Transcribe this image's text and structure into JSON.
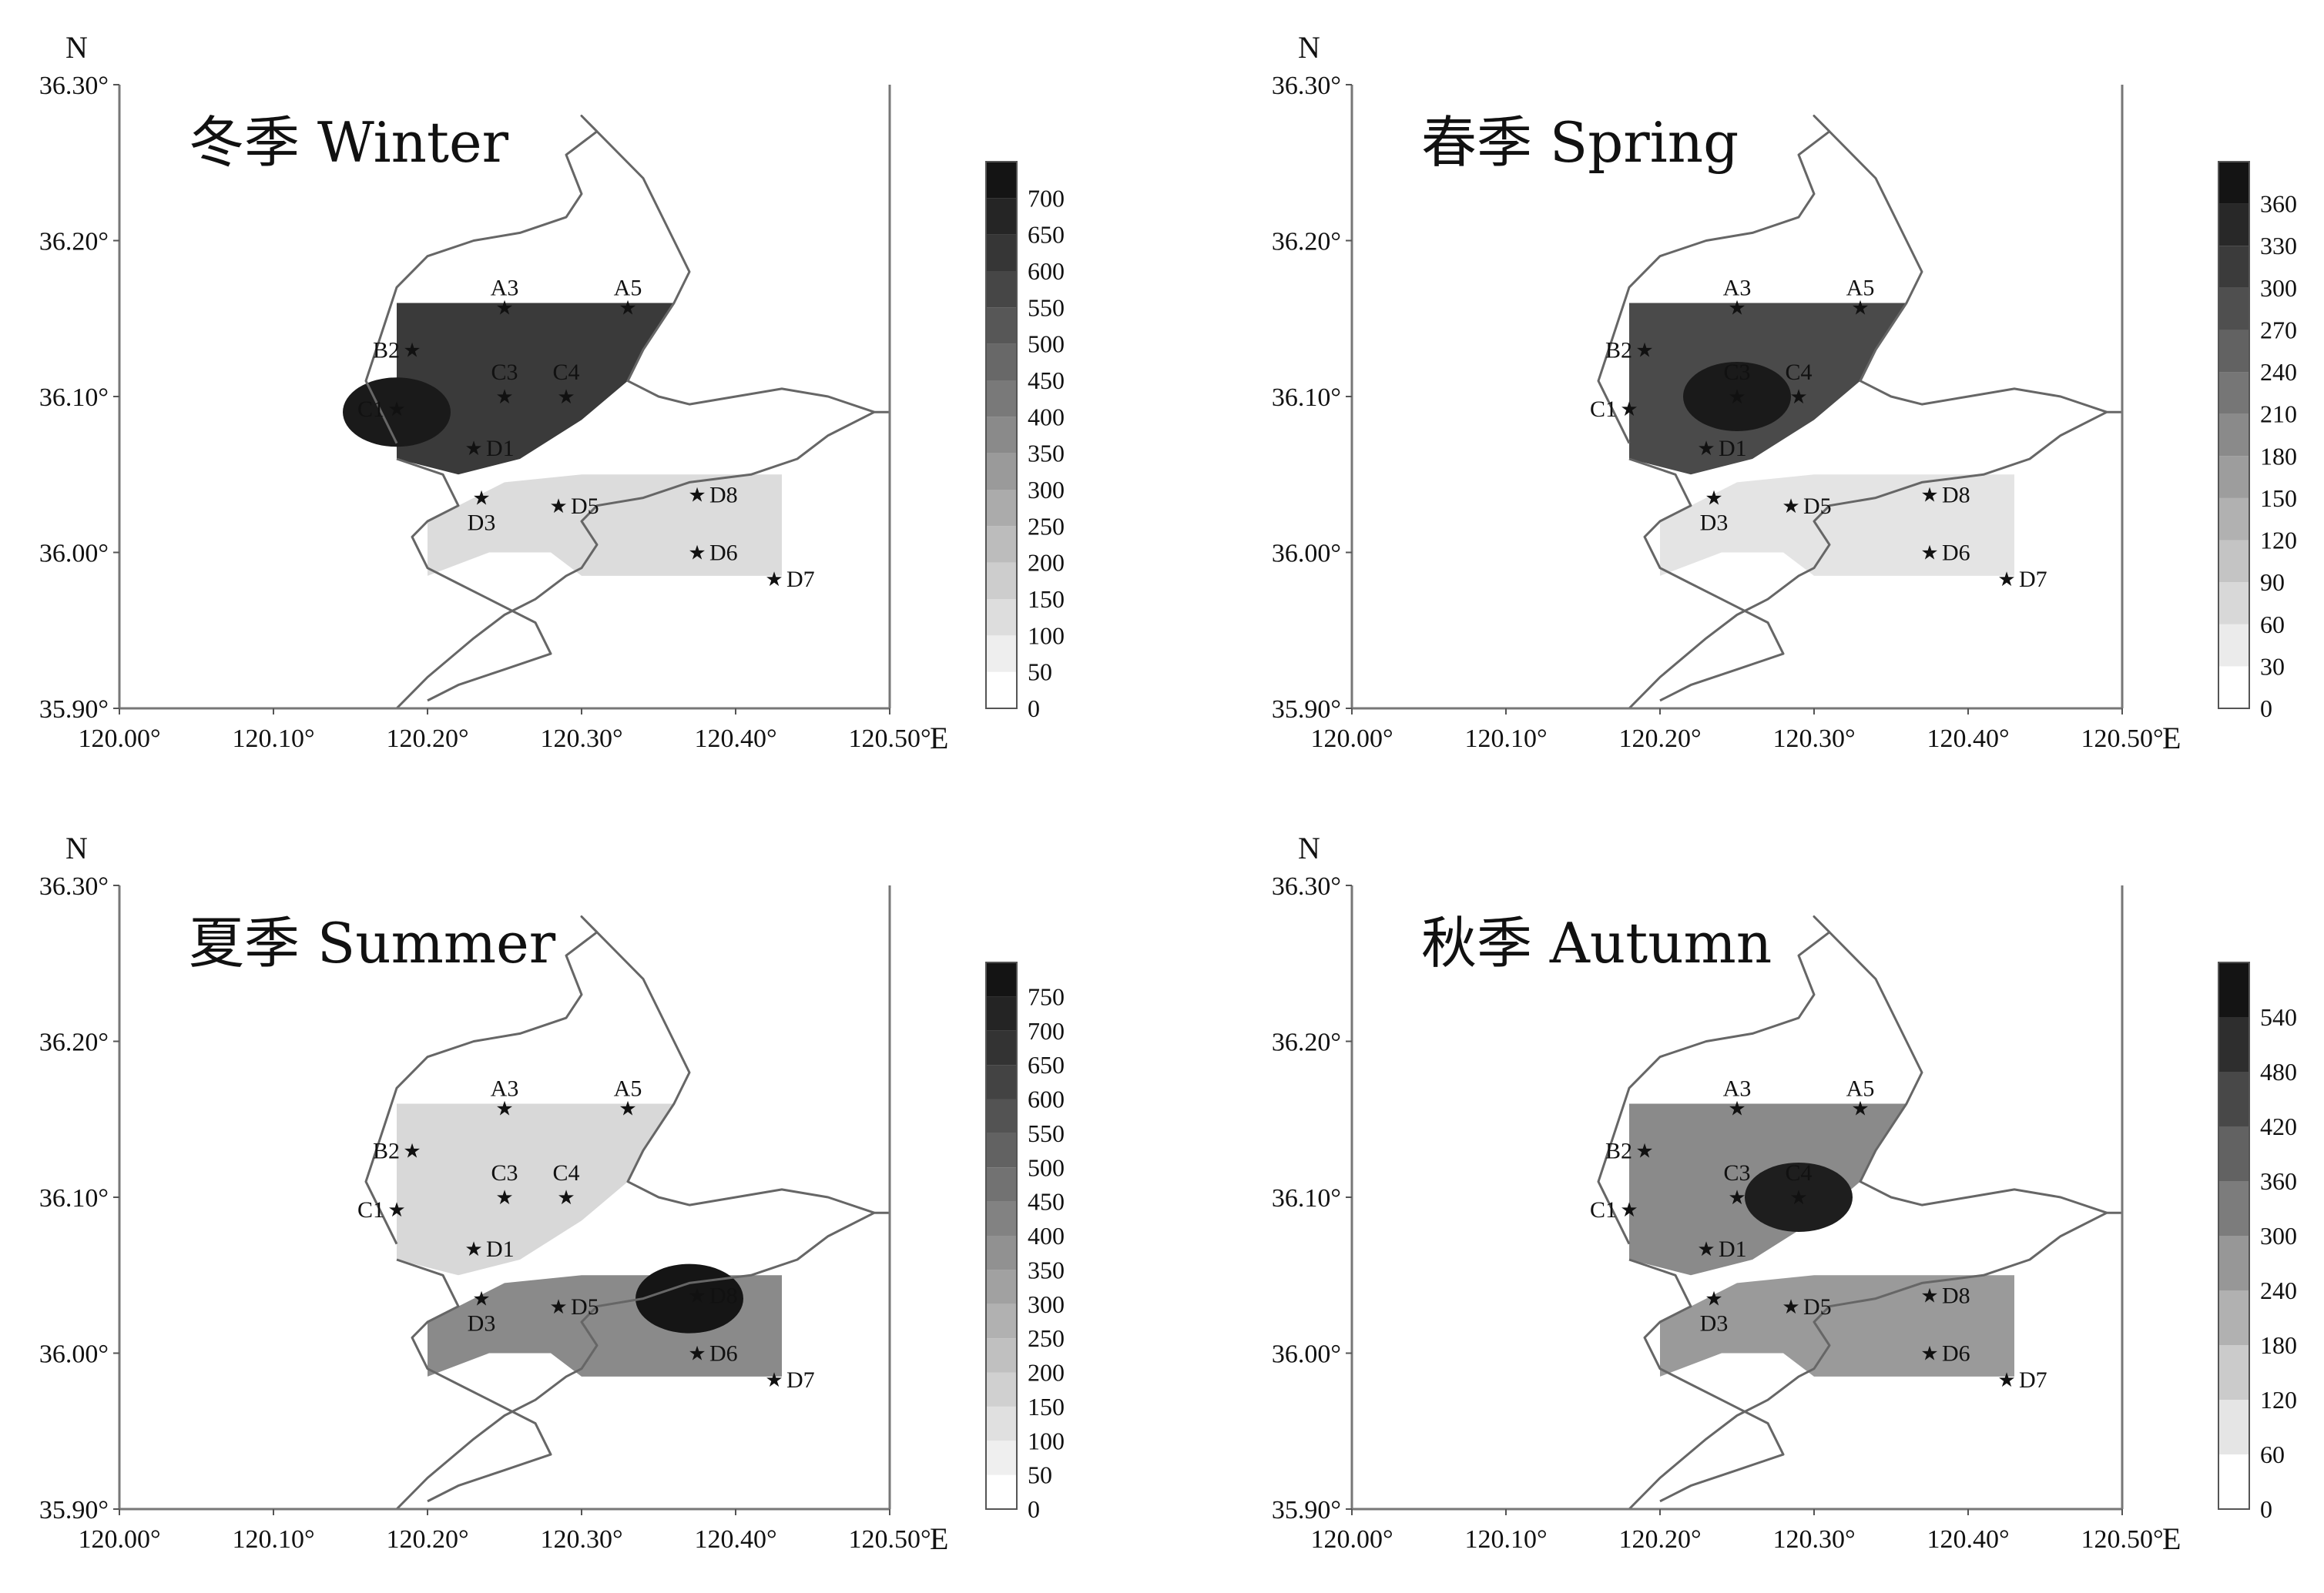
{
  "axes": {
    "y_ticks": [
      "36.30°",
      "36.20°",
      "36.10°",
      "36.00°",
      "35.90°"
    ],
    "x_ticks": [
      "120.00°",
      "120.10°",
      "120.20°",
      "120.30°",
      "120.40°",
      "120.50°"
    ],
    "north_label": "N",
    "east_label": "E",
    "xlim": [
      120.0,
      120.5
    ],
    "ylim": [
      35.9,
      36.3
    ]
  },
  "stations": [
    {
      "name": "A3",
      "lon": 120.25,
      "lat": 36.157
    },
    {
      "name": "A5",
      "lon": 120.33,
      "lat": 36.157
    },
    {
      "name": "B2",
      "lon": 120.19,
      "lat": 36.13
    },
    {
      "name": "C1",
      "lon": 120.18,
      "lat": 36.092
    },
    {
      "name": "C3",
      "lon": 120.25,
      "lat": 36.1
    },
    {
      "name": "C4",
      "lon": 120.29,
      "lat": 36.1
    },
    {
      "name": "D1",
      "lon": 120.23,
      "lat": 36.067
    },
    {
      "name": "D3",
      "lon": 120.235,
      "lat": 36.035
    },
    {
      "name": "D5",
      "lon": 120.285,
      "lat": 36.03
    },
    {
      "name": "D6",
      "lon": 120.375,
      "lat": 36.0
    },
    {
      "name": "D7",
      "lon": 120.425,
      "lat": 35.983
    },
    {
      "name": "D8",
      "lon": 120.375,
      "lat": 36.037
    }
  ],
  "panels": [
    {
      "id": "winter",
      "title": "冬季 Winter",
      "colorbar": [
        "0",
        "50",
        "100",
        "150",
        "200",
        "250",
        "300",
        "350",
        "400",
        "450",
        "500",
        "550",
        "600",
        "650",
        "700"
      ],
      "shading": {
        "box1": "#3a3a3a",
        "box2": "#dcdcdc",
        "hot": "#1a1a1a"
      }
    },
    {
      "id": "spring",
      "title": "春季 Spring",
      "colorbar": [
        "0",
        "30",
        "60",
        "90",
        "120",
        "150",
        "180",
        "210",
        "240",
        "270",
        "300",
        "330",
        "360"
      ],
      "shading": {
        "box1": "#4a4a4a",
        "box2": "#e4e4e4",
        "hot": "#1a1a1a"
      }
    },
    {
      "id": "summer",
      "title": "夏季 Summer",
      "colorbar": [
        "0",
        "50",
        "100",
        "150",
        "200",
        "250",
        "300",
        "350",
        "400",
        "450",
        "500",
        "550",
        "600",
        "650",
        "700",
        "750"
      ],
      "shading": {
        "box1": "#d8d8d8",
        "box2": "#8a8a8a",
        "hot": "#151515"
      }
    },
    {
      "id": "autumn",
      "title": "秋季 Autumn",
      "colorbar": [
        "0",
        "60",
        "120",
        "180",
        "240",
        "300",
        "360",
        "420",
        "480",
        "540"
      ],
      "shading": {
        "box1": "#8a8a8a",
        "box2": "#9a9a9a",
        "hot": "#1e1e1e"
      }
    }
  ]
}
